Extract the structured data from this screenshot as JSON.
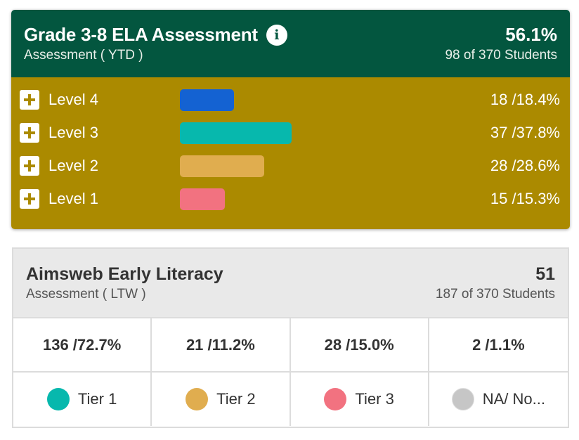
{
  "ela": {
    "title": "Grade 3-8 ELA Assessment",
    "info_icon": "i",
    "subtitle": "Assessment ( YTD )",
    "percent": "56.1%",
    "students": "98 of 370 Students",
    "colors": {
      "header": "#03563f",
      "body": "#ab8a00"
    },
    "levels": [
      {
        "label": "Level 4",
        "value": "18 /18.4%",
        "fraction": 0.184,
        "color": "#1462d2"
      },
      {
        "label": "Level 3",
        "value": "37 /37.8%",
        "fraction": 0.378,
        "color": "#07b8ad"
      },
      {
        "label": "Level 2",
        "value": "28 /28.6%",
        "fraction": 0.286,
        "color": "#e0ad4f"
      },
      {
        "label": "Level 1",
        "value": "15 /15.3%",
        "fraction": 0.153,
        "color": "#f27280"
      }
    ]
  },
  "aimsweb": {
    "title": "Aimsweb Early Literacy",
    "subtitle": "Assessment ( LTW )",
    "value": "51",
    "students": "187 of 370 Students",
    "tiers": [
      {
        "value": "136 /72.7%",
        "label": "Tier 1",
        "color": "#07b8ad"
      },
      {
        "value": "21 /11.2%",
        "label": "Tier 2",
        "color": "#e0ad4f"
      },
      {
        "value": "28 /15.0%",
        "label": "Tier 3",
        "color": "#f27280"
      },
      {
        "value": "2 /1.1%",
        "label": "NA/ No...",
        "color": "#c6c6c6"
      }
    ]
  }
}
